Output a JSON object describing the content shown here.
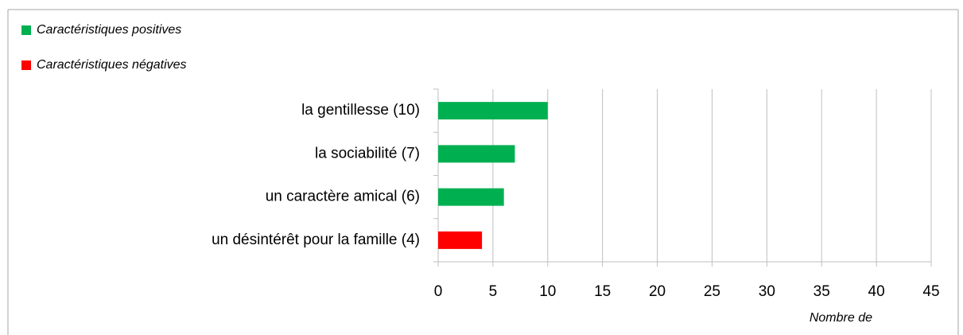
{
  "chart_data": {
    "type": "bar",
    "orientation": "horizontal",
    "categories": [
      "la gentillesse (10)",
      "la sociabilité (7)",
      "un caractère amical (6)",
      "un désintérêt pour la famille (4)"
    ],
    "series": [
      {
        "name": "Caractéristiques positives",
        "color": "#00b050",
        "values": [
          10,
          7,
          6,
          null
        ]
      },
      {
        "name": "Caractéristiques négatives",
        "color": "#ff0000",
        "values": [
          null,
          null,
          null,
          4
        ]
      }
    ],
    "xlabel": "Nombre de",
    "xlim": [
      0,
      45
    ],
    "xticks": [
      0,
      5,
      10,
      15,
      20,
      25,
      30,
      35,
      40,
      45
    ],
    "grid": true
  }
}
